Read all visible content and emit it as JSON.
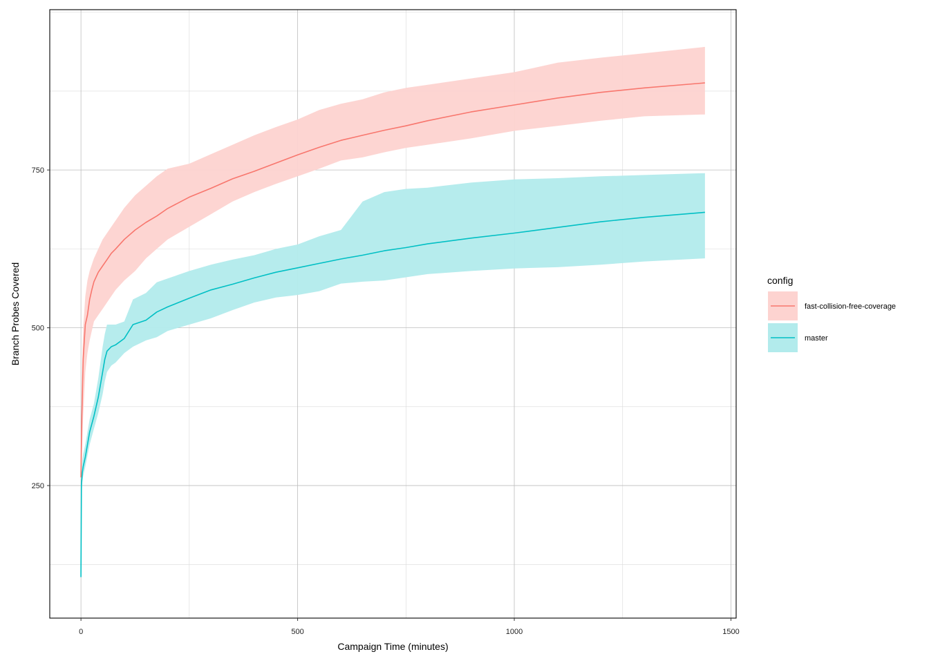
{
  "chart_data": {
    "type": "line",
    "xlabel": "Campaign Time (minutes)",
    "ylabel": "Branch Probes Covered",
    "xlim": [
      -72,
      1512
    ],
    "ylim": [
      40,
      1004
    ],
    "x_ticks": [
      0,
      500,
      1000,
      1500
    ],
    "y_ticks": [
      250,
      500,
      750
    ],
    "grid": true,
    "legend": {
      "title": "config",
      "position": "right"
    },
    "series": [
      {
        "name": "fast-collision-free-coverage",
        "color": "#F8766D",
        "fill": "#FDD3D0",
        "x": [
          0,
          2,
          5,
          10,
          15,
          20,
          25,
          30,
          40,
          50,
          60,
          70,
          80,
          100,
          125,
          150,
          175,
          200,
          250,
          300,
          350,
          400,
          450,
          500,
          550,
          600,
          650,
          700,
          750,
          800,
          900,
          1000,
          1100,
          1200,
          1300,
          1440
        ],
        "mean": [
          263,
          360,
          450,
          505,
          520,
          545,
          560,
          573,
          588,
          598,
          608,
          618,
          625,
          640,
          655,
          667,
          677,
          689,
          707,
          721,
          736,
          748,
          761,
          774,
          786,
          797,
          805,
          813,
          820,
          828,
          842,
          853,
          864,
          873,
          880,
          888
        ],
        "lower": [
          263,
          300,
          360,
          430,
          460,
          480,
          495,
          510,
          520,
          530,
          540,
          550,
          560,
          575,
          590,
          610,
          625,
          640,
          660,
          680,
          700,
          715,
          728,
          740,
          752,
          765,
          770,
          778,
          785,
          790,
          800,
          812,
          820,
          828,
          835,
          838
        ],
        "upper": [
          263,
          420,
          500,
          550,
          575,
          590,
          600,
          610,
          625,
          640,
          650,
          660,
          670,
          690,
          710,
          725,
          740,
          752,
          760,
          775,
          790,
          805,
          818,
          830,
          845,
          855,
          862,
          873,
          880,
          885,
          895,
          905,
          920,
          928,
          935,
          945
        ]
      },
      {
        "name": "master",
        "color": "#00BFC4",
        "fill": "#B2EBEC",
        "x": [
          0,
          1,
          3,
          5,
          10,
          20,
          30,
          40,
          50,
          55,
          60,
          70,
          80,
          100,
          120,
          150,
          175,
          200,
          250,
          300,
          350,
          400,
          450,
          500,
          550,
          600,
          650,
          700,
          750,
          800,
          900,
          1000,
          1100,
          1200,
          1300,
          1440
        ],
        "mean": [
          105,
          250,
          270,
          280,
          295,
          335,
          360,
          390,
          430,
          450,
          463,
          470,
          473,
          483,
          505,
          512,
          525,
          533,
          547,
          560,
          569,
          579,
          588,
          595,
          602,
          609,
          615,
          622,
          627,
          633,
          642,
          650,
          659,
          668,
          675,
          683
        ],
        "lower": [
          105,
          230,
          255,
          265,
          280,
          315,
          340,
          365,
          395,
          415,
          430,
          440,
          445,
          460,
          470,
          480,
          485,
          495,
          505,
          515,
          528,
          540,
          548,
          552,
          558,
          570,
          573,
          575,
          580,
          585,
          590,
          594,
          596,
          600,
          605,
          610
        ],
        "upper": [
          105,
          270,
          290,
          300,
          315,
          355,
          380,
          420,
          470,
          490,
          505,
          505,
          505,
          510,
          545,
          555,
          572,
          578,
          590,
          600,
          608,
          615,
          625,
          632,
          645,
          655,
          700,
          715,
          720,
          722,
          730,
          735,
          737,
          740,
          742,
          745
        ]
      }
    ]
  }
}
